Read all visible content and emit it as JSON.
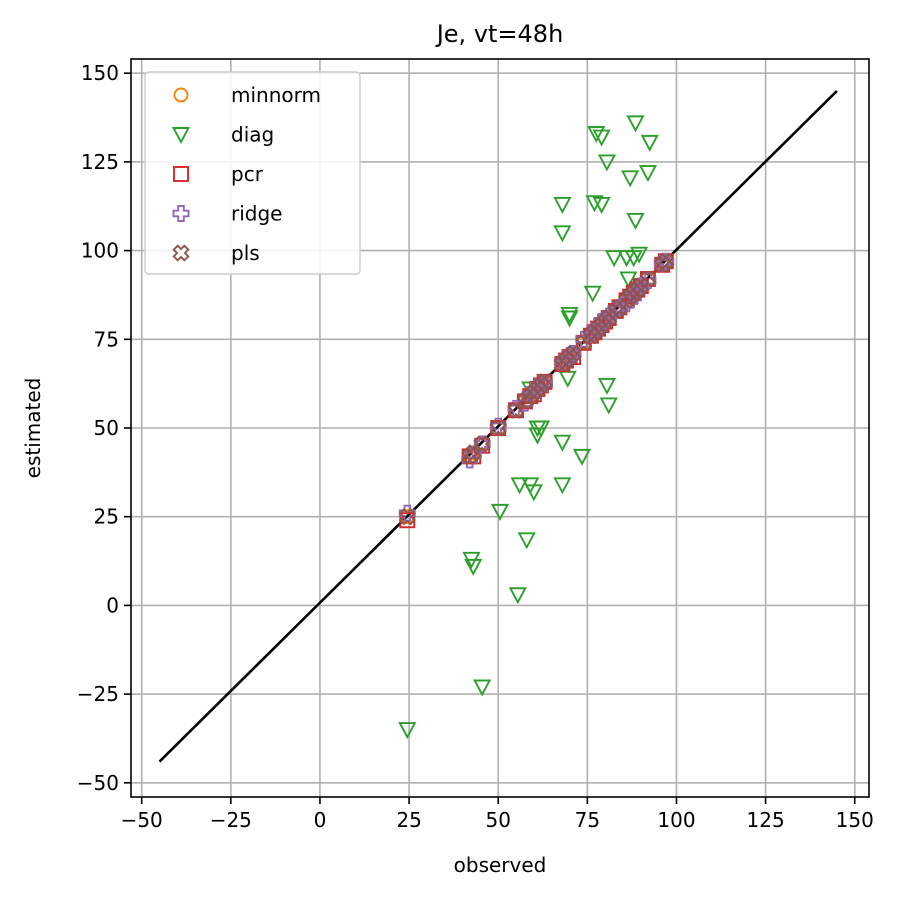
{
  "chart_data": {
    "type": "scatter",
    "title": "Je, vt=48h",
    "xlabel": "observed",
    "ylabel": "estimated",
    "xlim": [
      -53,
      154
    ],
    "ylim": [
      -54,
      154
    ],
    "xticks": [
      -50,
      -25,
      0,
      25,
      50,
      75,
      100,
      125,
      150
    ],
    "yticks": [
      -50,
      -25,
      0,
      25,
      50,
      75,
      100,
      125,
      150
    ],
    "xtick_labels": [
      "−50",
      "−25",
      "0",
      "25",
      "50",
      "75",
      "100",
      "125",
      "150"
    ],
    "ytick_labels": [
      "−50",
      "−25",
      "0",
      "25",
      "50",
      "75",
      "100",
      "125",
      "150"
    ],
    "grid": true,
    "legend_position": "top-left",
    "reference_line": {
      "from": [
        -45,
        -44
      ],
      "to": [
        145,
        145
      ],
      "color": "#000000"
    },
    "colors": {
      "minnorm": "#ff7f0e",
      "diag": "#2ca02c",
      "pcr": "#d62728",
      "ridge": "#9467bd",
      "pls": "#8c564b"
    },
    "series": [
      {
        "name": "minnorm",
        "marker": "circle",
        "points": [
          [
            24.5,
            25
          ],
          [
            42,
            42
          ],
          [
            43,
            43
          ],
          [
            45.5,
            45.5
          ],
          [
            50,
            50
          ],
          [
            55,
            55
          ],
          [
            57.5,
            57.5
          ],
          [
            59,
            59
          ],
          [
            60,
            60
          ],
          [
            61,
            61
          ],
          [
            62,
            62
          ],
          [
            63,
            63
          ],
          [
            68,
            68
          ],
          [
            69,
            69
          ],
          [
            70,
            70
          ],
          [
            71,
            71
          ],
          [
            74,
            74
          ],
          [
            76,
            76
          ],
          [
            77,
            77
          ],
          [
            78,
            78
          ],
          [
            79,
            79
          ],
          [
            80,
            80
          ],
          [
            81,
            81
          ],
          [
            83,
            83
          ],
          [
            84,
            84
          ],
          [
            86,
            86
          ],
          [
            87,
            87
          ],
          [
            88,
            88
          ],
          [
            89,
            89
          ],
          [
            90,
            90
          ],
          [
            92,
            92
          ],
          [
            96,
            96
          ],
          [
            97,
            97
          ]
        ]
      },
      {
        "name": "diag",
        "marker": "triangle-down",
        "points": [
          [
            24.5,
            -35
          ],
          [
            45.5,
            -23
          ],
          [
            55.5,
            3
          ],
          [
            42.5,
            13
          ],
          [
            43,
            11
          ],
          [
            58,
            18.5
          ],
          [
            50.5,
            26.5
          ],
          [
            56,
            34
          ],
          [
            59,
            34
          ],
          [
            60,
            32
          ],
          [
            68,
            34
          ],
          [
            61,
            50
          ],
          [
            62,
            50
          ],
          [
            61,
            48
          ],
          [
            68,
            46
          ],
          [
            73.5,
            42
          ],
          [
            59,
            61
          ],
          [
            69.5,
            64
          ],
          [
            70,
            81
          ],
          [
            70,
            82
          ],
          [
            76.5,
            88
          ],
          [
            80.5,
            62
          ],
          [
            81,
            56.5
          ],
          [
            82.5,
            98
          ],
          [
            86,
            98
          ],
          [
            86.5,
            92
          ],
          [
            88,
            98
          ],
          [
            89.5,
            99
          ],
          [
            88.5,
            108.5
          ],
          [
            87,
            120.5
          ],
          [
            92,
            122
          ],
          [
            68,
            105
          ],
          [
            68,
            113
          ],
          [
            77,
            113.5
          ],
          [
            79,
            113
          ],
          [
            77.5,
            133
          ],
          [
            79,
            132
          ],
          [
            80.5,
            125
          ],
          [
            92.5,
            130.5
          ],
          [
            88.5,
            136
          ]
        ]
      },
      {
        "name": "pcr",
        "marker": "square",
        "points": [
          [
            24.5,
            24
          ],
          [
            42,
            42
          ],
          [
            43,
            42
          ],
          [
            45.5,
            45
          ],
          [
            50,
            50
          ],
          [
            55,
            55
          ],
          [
            57.5,
            57.5
          ],
          [
            59,
            59
          ],
          [
            60,
            59.5
          ],
          [
            61,
            61
          ],
          [
            62,
            62
          ],
          [
            63,
            63
          ],
          [
            68,
            68
          ],
          [
            69,
            69
          ],
          [
            70,
            70
          ],
          [
            71,
            70
          ],
          [
            74,
            74
          ],
          [
            76,
            76
          ],
          [
            77,
            77
          ],
          [
            78,
            78
          ],
          [
            79,
            79
          ],
          [
            80,
            80
          ],
          [
            81,
            81
          ],
          [
            83,
            83
          ],
          [
            84,
            84
          ],
          [
            86,
            86
          ],
          [
            87,
            87
          ],
          [
            88,
            88
          ],
          [
            89,
            89
          ],
          [
            90,
            90
          ],
          [
            92,
            92
          ],
          [
            96,
            96
          ],
          [
            97,
            97
          ]
        ]
      },
      {
        "name": "ridge",
        "marker": "plus",
        "points": [
          [
            24.5,
            26
          ],
          [
            42,
            41
          ],
          [
            43,
            42.5
          ],
          [
            45.5,
            45.5
          ],
          [
            50,
            50.5
          ],
          [
            55,
            55.5
          ],
          [
            57.5,
            57
          ],
          [
            59,
            59.5
          ],
          [
            60,
            60.5
          ],
          [
            61,
            61.5
          ],
          [
            62,
            62.5
          ],
          [
            63,
            62.5
          ],
          [
            68,
            68.5
          ],
          [
            69,
            69.5
          ],
          [
            70,
            70.5
          ],
          [
            71,
            71
          ],
          [
            74,
            75
          ],
          [
            76,
            76.5
          ],
          [
            77,
            77.5
          ],
          [
            78,
            78.5
          ],
          [
            79,
            80
          ],
          [
            80,
            80.5
          ],
          [
            81,
            81.5
          ],
          [
            83,
            83.5
          ],
          [
            84,
            84
          ],
          [
            86,
            85
          ],
          [
            87,
            86
          ],
          [
            88,
            87.5
          ],
          [
            89,
            88.5
          ],
          [
            90,
            90
          ],
          [
            92,
            91.5
          ],
          [
            96,
            96.5
          ],
          [
            97,
            97
          ]
        ]
      },
      {
        "name": "pls",
        "marker": "x-filled",
        "points": [
          [
            24.5,
            25
          ],
          [
            42,
            42
          ],
          [
            43,
            43
          ],
          [
            45.5,
            45.5
          ],
          [
            50,
            50
          ],
          [
            55,
            55
          ],
          [
            57.5,
            57.5
          ],
          [
            59,
            59
          ],
          [
            60,
            60
          ],
          [
            61,
            61
          ],
          [
            62,
            62
          ],
          [
            63,
            63
          ],
          [
            68,
            68
          ],
          [
            69,
            69
          ],
          [
            70,
            70
          ],
          [
            71,
            71
          ],
          [
            74,
            74
          ],
          [
            76,
            76
          ],
          [
            77,
            77
          ],
          [
            78,
            78
          ],
          [
            79,
            79
          ],
          [
            80,
            80
          ],
          [
            81,
            81
          ],
          [
            83,
            83
          ],
          [
            84,
            84
          ],
          [
            86,
            86
          ],
          [
            87,
            87
          ],
          [
            88,
            88
          ],
          [
            89,
            89
          ],
          [
            90,
            90
          ],
          [
            92,
            92
          ],
          [
            96,
            96
          ],
          [
            97,
            97
          ]
        ]
      }
    ]
  }
}
